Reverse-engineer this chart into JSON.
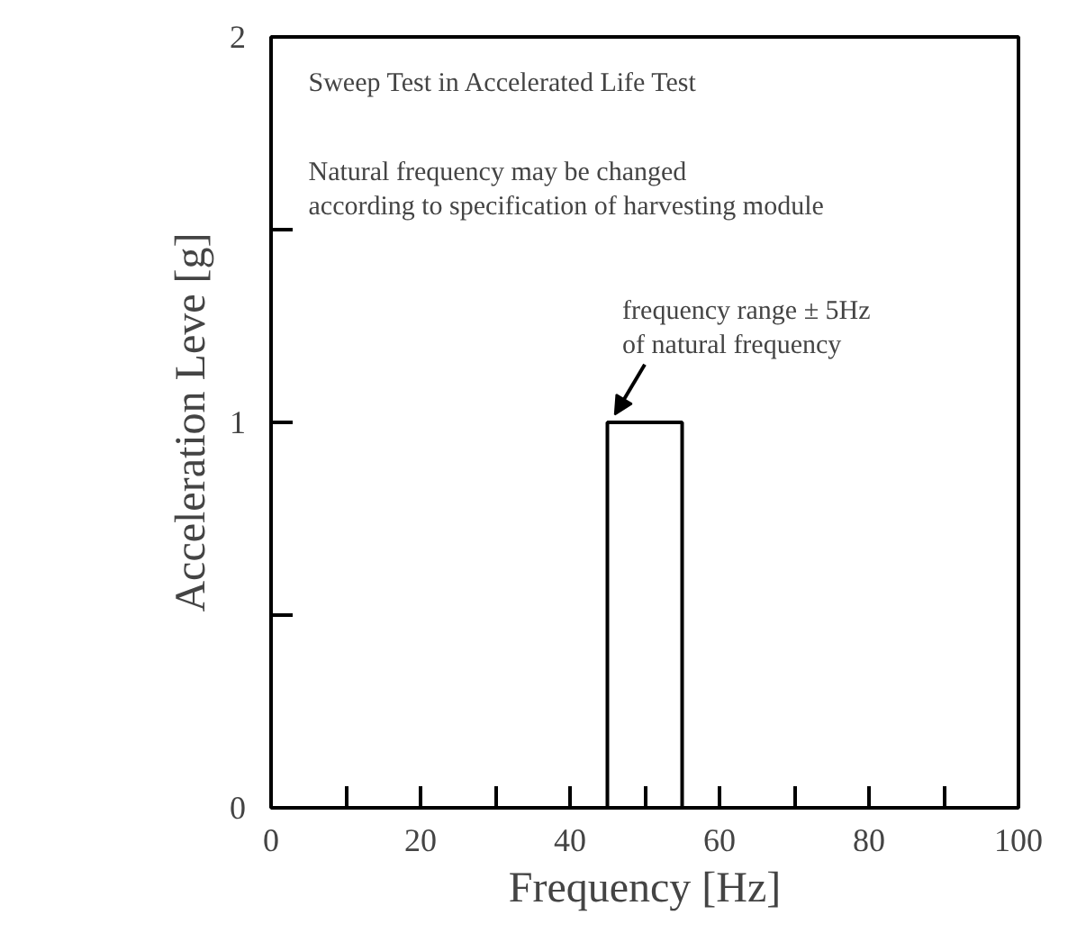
{
  "chart_data": {
    "type": "histogram",
    "xlabel": "Frequency [Hz]",
    "ylabel": "Acceleration Leve [g]",
    "bins": [
      45,
      55
    ],
    "values": [
      1
    ],
    "color": "#ffffff",
    "xlim": [
      0,
      100
    ],
    "ylim": [
      0,
      2
    ],
    "xticks": [
      0,
      {
        "value": 10,
        "label": null
      },
      20,
      {
        "value": 30,
        "label": null
      },
      40,
      {
        "value": 50,
        "label": null
      },
      60,
      {
        "value": 70,
        "label": null
      },
      80,
      {
        "value": 90,
        "label": null
      },
      100
    ],
    "yticks": [
      0,
      {
        "value": 0.5,
        "label": null
      },
      1,
      {
        "value": 1.5,
        "label": null
      },
      2
    ],
    "grid": false,
    "annotations": [
      "Sweep Test in Accelerated Life Test",
      "Natural frequency may be changed\naccording to specification of harvesting module",
      {
        "text": "frequency range ± 5Hz\nof natural frequency",
        "x": 45,
        "y": 1
      }
    ]
  }
}
